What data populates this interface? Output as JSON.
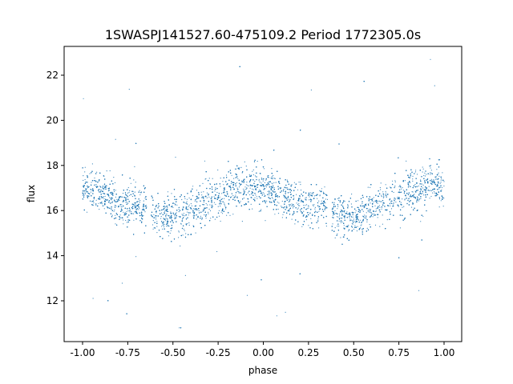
{
  "chart_data": {
    "type": "scatter",
    "title": "1SWASPJ141527.60-475109.2 Period 1772305.0s",
    "xlabel": "phase",
    "ylabel": "flux",
    "xlim": [
      -1.1,
      1.1
    ],
    "ylim": [
      10.2,
      23.3
    ],
    "xticks": [
      "-1.00",
      "-0.75",
      "-0.50",
      "-0.25",
      "0.00",
      "0.25",
      "0.50",
      "0.75",
      "1.00"
    ],
    "xtick_values": [
      -1,
      -0.75,
      -0.5,
      -0.25,
      0,
      0.25,
      0.5,
      0.75,
      1
    ],
    "yticks": [
      "12",
      "14",
      "16",
      "18",
      "20",
      "22"
    ],
    "ytick_values": [
      12,
      14,
      16,
      18,
      20,
      22
    ],
    "grid": false,
    "color": "#1f77b4",
    "profile_note_phase_repeats": true,
    "binned_profile": {
      "phase": [
        0.0,
        0.05,
        0.1,
        0.15,
        0.2,
        0.25,
        0.3,
        0.35,
        0.4,
        0.45,
        0.5,
        0.55,
        0.6,
        0.65,
        0.7,
        0.75,
        0.8,
        0.85,
        0.9,
        0.95,
        1.0
      ],
      "mean_flux": [
        17.0,
        16.9,
        16.7,
        16.5,
        16.3,
        16.2,
        16.2,
        16.3,
        15.9,
        15.7,
        15.7,
        15.8,
        16.1,
        16.3,
        16.5,
        16.6,
        16.8,
        17.0,
        17.1,
        17.2,
        17.0
      ],
      "flux_spread": [
        0.9,
        0.85,
        0.85,
        0.85,
        0.9,
        0.9,
        0.9,
        0.85,
        0.8,
        0.8,
        0.8,
        0.8,
        0.85,
        0.85,
        0.85,
        0.9,
        0.9,
        0.95,
        0.95,
        0.95,
        0.9
      ]
    },
    "gaps_phase": [
      [
        0.355,
        0.38
      ]
    ]
  }
}
